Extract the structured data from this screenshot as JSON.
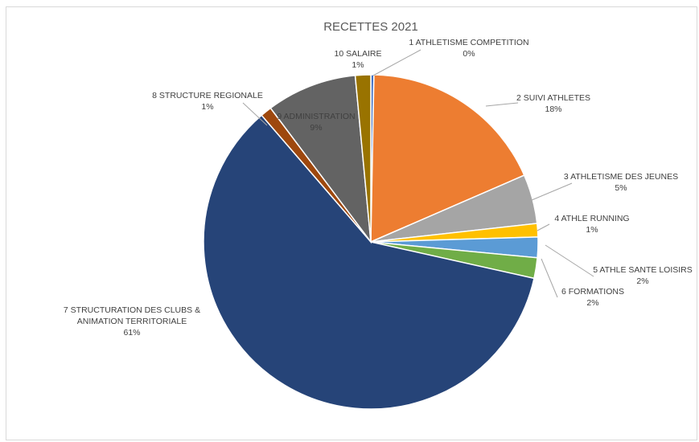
{
  "chart_data": {
    "type": "pie",
    "title": "RECETTES 2021",
    "slices": [
      {
        "name": "1 ATHLETISME COMPETITION",
        "pct_label": "0%",
        "value": 0.3,
        "color": "#4472c4"
      },
      {
        "name": "2 SUIVI ATHLETES",
        "pct_label": "18%",
        "value": 18.3,
        "color": "#ed7d31"
      },
      {
        "name": "3 ATHLETISME DES JEUNES",
        "pct_label": "5%",
        "value": 4.8,
        "color": "#a5a5a5"
      },
      {
        "name": "4 ATHLE RUNNING",
        "pct_label": "1%",
        "value": 1.3,
        "color": "#ffc000"
      },
      {
        "name": "5 ATHLE SANTE LOISIRS",
        "pct_label": "2%",
        "value": 2.0,
        "color": "#5b9bd5"
      },
      {
        "name": "6 FORMATIONS",
        "pct_label": "2%",
        "value": 2.0,
        "color": "#70ad47"
      },
      {
        "name": "7  STRUCTURATION DES CLUBS & ANIMATION TERRITORIALE",
        "name_lines": [
          "7  STRUCTURATION DES CLUBS &",
          "ANIMATION TERRITORIALE"
        ],
        "pct_label": "61%",
        "value": 60.6,
        "color": "#264478"
      },
      {
        "name": "8 STRUCTURE REGIONALE",
        "pct_label": "1%",
        "value": 1.1,
        "color": "#9e480e"
      },
      {
        "name": "9 ADMINISTRATION",
        "pct_label": "9%",
        "value": 8.8,
        "color": "#636363"
      },
      {
        "name": "10 SALAIRE",
        "pct_label": "1%",
        "value": 1.5,
        "color": "#997300"
      }
    ]
  }
}
